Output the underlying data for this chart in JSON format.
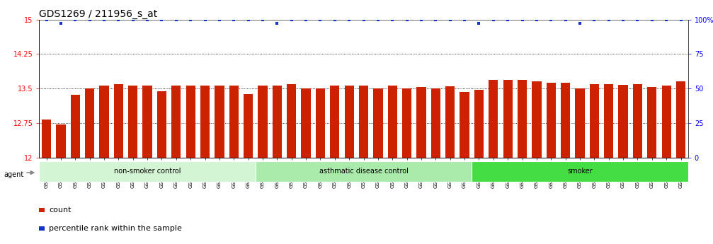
{
  "title": "GDS1269 / 211956_s_at",
  "samples": [
    "GSM38345",
    "GSM38346",
    "GSM38348",
    "GSM38350",
    "GSM38351",
    "GSM38353",
    "GSM38355",
    "GSM38356",
    "GSM38358",
    "GSM38362",
    "GSM38368",
    "GSM38371",
    "GSM38373",
    "GSM38377",
    "GSM38385",
    "GSM38361",
    "GSM38363",
    "GSM38364",
    "GSM38365",
    "GSM38370",
    "GSM38372",
    "GSM38375",
    "GSM38378",
    "GSM38379",
    "GSM38381",
    "GSM38383",
    "GSM38386",
    "GSM38387",
    "GSM38388",
    "GSM38389",
    "GSM38347",
    "GSM38349",
    "GSM38352",
    "GSM38354",
    "GSM38357",
    "GSM38359",
    "GSM38360",
    "GSM38366",
    "GSM38367",
    "GSM38369",
    "GSM38374",
    "GSM38376",
    "GSM38380",
    "GSM38382",
    "GSM38384"
  ],
  "counts": [
    12.83,
    12.72,
    13.36,
    13.5,
    13.57,
    13.6,
    13.57,
    13.57,
    13.44,
    13.57,
    13.57,
    13.57,
    13.57,
    13.57,
    13.38,
    13.57,
    13.57,
    13.6,
    13.5,
    13.5,
    13.57,
    13.57,
    13.57,
    13.5,
    13.57,
    13.5,
    13.53,
    13.5,
    13.55,
    13.42,
    13.47,
    13.68,
    13.68,
    13.68,
    13.65,
    13.62,
    13.62,
    13.5,
    13.6,
    13.6,
    13.58,
    13.6,
    13.53,
    13.57,
    13.65
  ],
  "percentile": [
    100,
    97,
    100,
    100,
    100,
    100,
    100,
    100,
    100,
    100,
    100,
    100,
    100,
    100,
    100,
    100,
    97,
    100,
    100,
    100,
    100,
    100,
    100,
    100,
    100,
    100,
    100,
    100,
    100,
    100,
    97,
    100,
    100,
    100,
    100,
    100,
    100,
    97,
    100,
    100,
    100,
    100,
    100,
    100,
    100
  ],
  "groups": [
    {
      "label": "non-smoker control",
      "start": 0,
      "end": 14,
      "color": "#d4f5d4"
    },
    {
      "label": "asthmatic disease control",
      "start": 15,
      "end": 29,
      "color": "#aaeaaa"
    },
    {
      "label": "smoker",
      "start": 30,
      "end": 44,
      "color": "#44dd44"
    }
  ],
  "ylim_left": [
    12,
    15
  ],
  "ylim_right": [
    0,
    100
  ],
  "yticks_left": [
    12,
    12.75,
    13.5,
    14.25,
    15
  ],
  "yticks_right": [
    0,
    25,
    50,
    75,
    100
  ],
  "bar_color": "#cc2200",
  "dot_color": "#1133cc",
  "bg_color": "#ffffff",
  "title_fontsize": 10,
  "tick_fontsize": 7,
  "label_fontsize": 7,
  "legend_fontsize": 8
}
